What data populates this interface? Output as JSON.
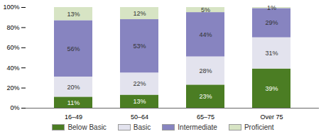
{
  "chart_data": {
    "type": "bar",
    "stacked": true,
    "data_labels": true,
    "categories": [
      "16–49",
      "50–64",
      "65–75",
      "Over 75"
    ],
    "series": [
      {
        "name": "Below Basic",
        "color": "#4b7d23",
        "values": [
          11,
          13,
          23,
          39
        ],
        "value_labels": [
          "11%",
          "13%",
          "23%",
          "39%"
        ]
      },
      {
        "name": "Basic",
        "color": "#e3e3ee",
        "values": [
          20,
          22,
          28,
          31
        ],
        "value_labels": [
          "20%",
          "22%",
          "28%",
          "31%"
        ]
      },
      {
        "name": "Intermediate",
        "color": "#8784c0",
        "values": [
          56,
          53,
          44,
          29
        ],
        "value_labels": [
          "56%",
          "53%",
          "44%",
          "29%"
        ]
      },
      {
        "name": "Proficient",
        "color": "#d7e4c4",
        "values": [
          13,
          12,
          5,
          1
        ],
        "value_labels": [
          "13%",
          "12%",
          "5%",
          "1%"
        ]
      }
    ],
    "ylim": [
      0,
      100
    ],
    "yticks": [
      {
        "value": 0,
        "label": "0%"
      },
      {
        "value": 20,
        "label": "20%"
      },
      {
        "value": 40,
        "label": "40%"
      },
      {
        "value": 60,
        "label": "60%"
      },
      {
        "value": 80,
        "label": "80%"
      },
      {
        "value": 100,
        "label": "100%"
      }
    ],
    "legend": "bottom"
  }
}
